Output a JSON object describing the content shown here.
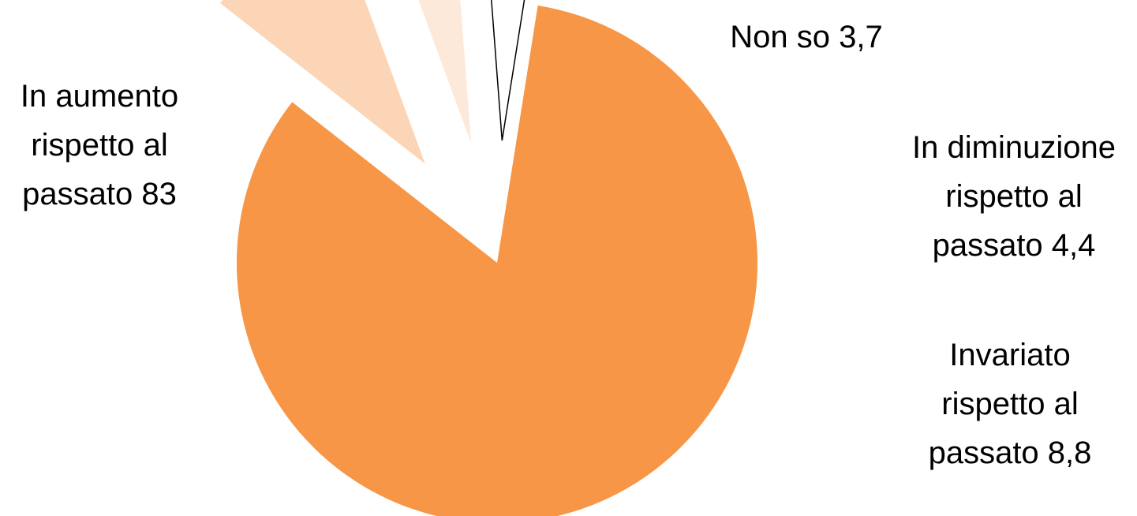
{
  "chart_data": {
    "type": "pie",
    "title": "",
    "legend": "none",
    "start_angle_deg": 81,
    "direction": "counterclockwise",
    "slices": [
      {
        "key": "in-aumento",
        "name": "In aumento rispetto al passato",
        "value": 83,
        "label_lines": [
          "In aumento",
          "rispetto al",
          "passato 83"
        ],
        "color": "#F79646",
        "outline": false,
        "exploded": false
      },
      {
        "key": "invariato",
        "name": "Invariato rispetto al passato",
        "value": 8.8,
        "label_lines": [
          "Invariato",
          "rispetto al",
          "passato 8,8"
        ],
        "color": "#FBD5B5",
        "outline": false,
        "exploded": true
      },
      {
        "key": "in-diminuzione",
        "name": "In diminuzione rispetto al passato",
        "value": 4.4,
        "label_lines": [
          "In diminuzione",
          "rispetto al",
          "passato 4,4"
        ],
        "color": "#FDE9D9",
        "outline": false,
        "exploded": true
      },
      {
        "key": "non-so",
        "name": "Non so",
        "value": 3.7,
        "label_lines": [
          "Non so 3,7"
        ],
        "color": "#FFFFFF",
        "outline": true,
        "exploded": true
      }
    ]
  }
}
